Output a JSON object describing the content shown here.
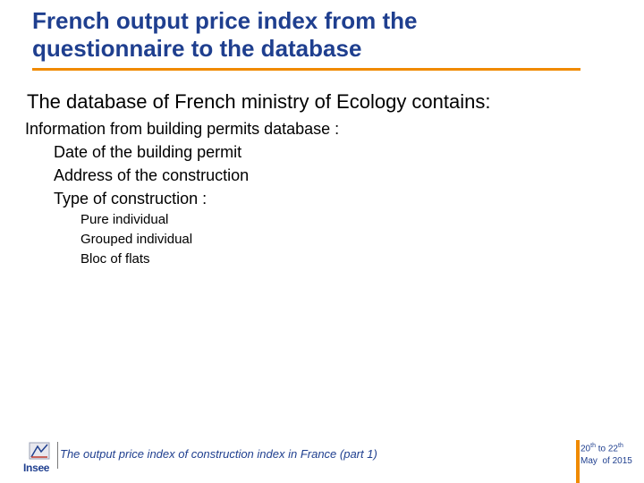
{
  "slide": {
    "title_line1": "French output price index from the",
    "title_line2": "questionnaire to the database",
    "lead": "The database of French ministry of Ecology contains:",
    "level1": "Information from building permits database :",
    "level2": [
      "Date of the building permit",
      "Address of the construction",
      "Type of construction :"
    ],
    "level3": [
      "Pure individual",
      "Grouped individual",
      "Bloc of flats"
    ]
  },
  "footer": {
    "logo_text": "Insee",
    "text": "The output price index of construction index in France (part 1)",
    "date": {
      "from": "20",
      "from_sup": "th",
      "to_word": " to ",
      "to": "22",
      "to_sup": "th",
      "line2": "May  of 2015"
    }
  },
  "colors": {
    "title": "#1f3f8f",
    "accent": "#f08a00",
    "footer_text": "#1f3f8f"
  }
}
